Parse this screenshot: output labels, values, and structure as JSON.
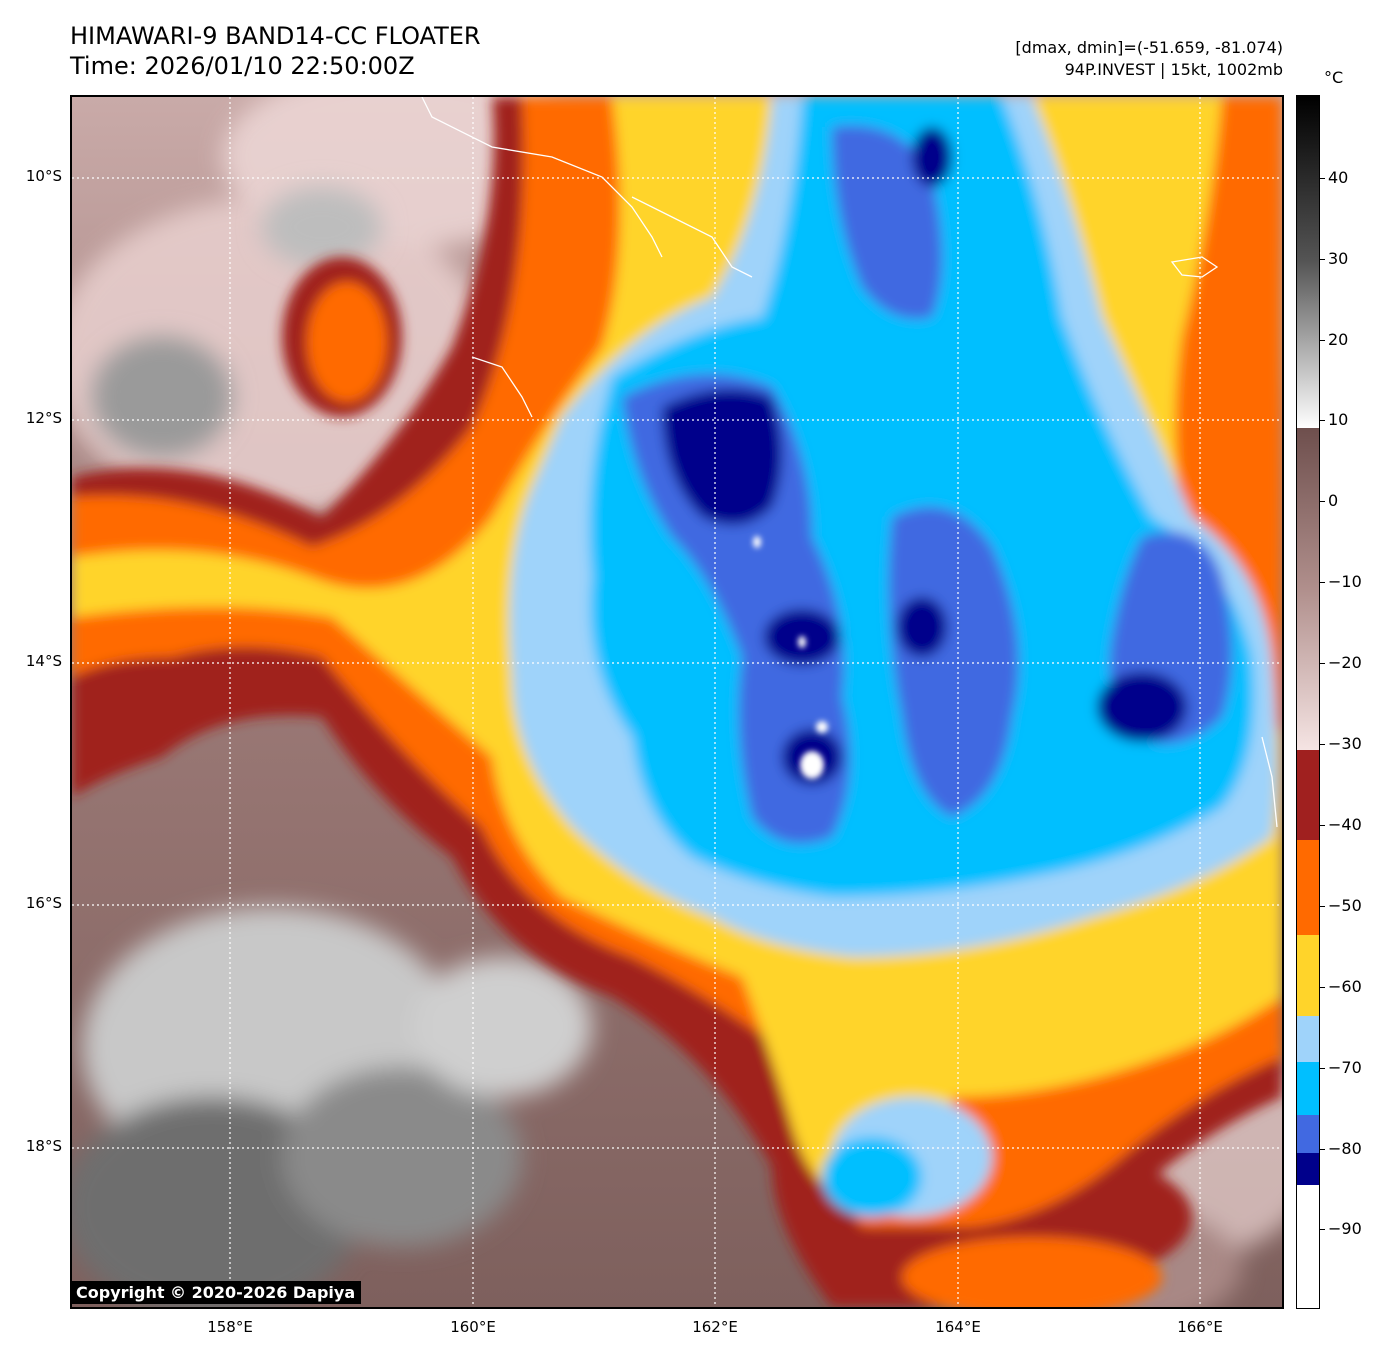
{
  "title": {
    "line1": "HIMAWARI-9 BAND14-CC FLOATER",
    "line2": "Time: 2026/01/10 22:50:00Z"
  },
  "info": {
    "line1": "[dmax, dmin]=(-51.659, -81.074)",
    "line2": "94P.INVEST | 15kt, 1002mb"
  },
  "map": {
    "lat_labels": [
      "10°S",
      "12°S",
      "14°S",
      "16°S",
      "18°S"
    ],
    "lon_labels": [
      "158°E",
      "160°E",
      "162°E",
      "164°E",
      "166°E"
    ],
    "grid": true
  },
  "colorbar": {
    "unit": "°C",
    "tick_labels": [
      "40",
      "30",
      "20",
      "10",
      "0",
      "−10",
      "−20",
      "−30",
      "−40",
      "−50",
      "−60",
      "−70",
      "−80",
      "−90"
    ],
    "colors": {
      "white_cold": "#ffffff",
      "navy": "#00008b",
      "royal_blue": "#4169e1",
      "deep_sky_blue": "#00bfff",
      "light_sky_blue": "#9fd3fa",
      "gold": "#ffd42a",
      "orange": "#ff6a00",
      "brown_red": "#a0201f",
      "pink": "#f3dada",
      "mauve": "#7a5a58",
      "gray_warm": "#cccccc",
      "black_warm": "#000000"
    }
  },
  "copyright": "Copyright © 2020-2026 Dapiya"
}
